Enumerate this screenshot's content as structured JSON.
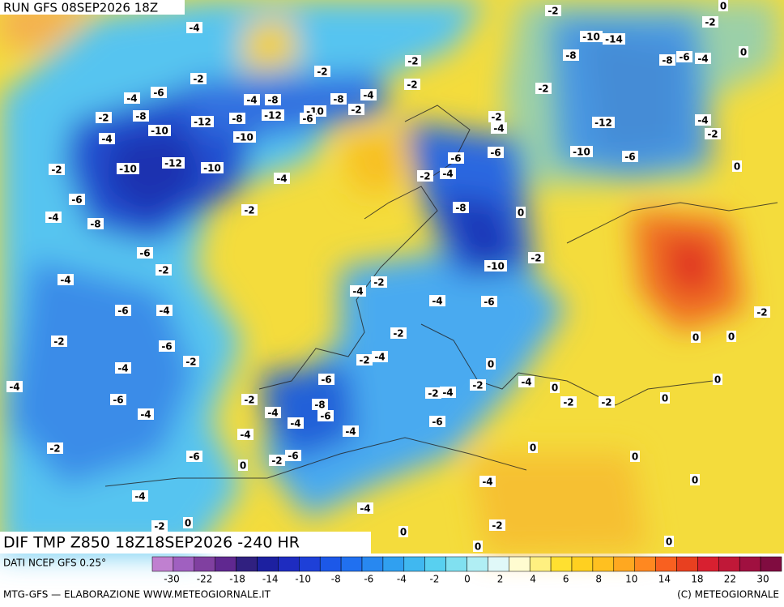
{
  "header": {
    "run": "RUN GFS 08SEP2026 18Z"
  },
  "map": {
    "title": "DIF TMP Z850 18Z18SEP2026 -240 HR",
    "contour_labels": [
      -4,
      -2,
      -2,
      0,
      -10,
      -14,
      -8,
      -8,
      -6,
      -4,
      0,
      -2,
      -2,
      -2,
      -2,
      -2,
      -4,
      -6,
      -4,
      -8,
      -4,
      -8,
      -2,
      -8,
      -12,
      -8,
      -12,
      -10,
      -6,
      -2,
      -2,
      -4,
      -12,
      -4,
      -2,
      -10,
      -10,
      -4,
      -6,
      -6,
      -10,
      -6,
      -10,
      -12,
      -10,
      -2,
      0,
      -2,
      -4,
      -4,
      -6,
      -8,
      0,
      -2,
      -4,
      -8,
      -6,
      -2,
      -10,
      -2,
      -4,
      -4,
      -2,
      -4,
      -6,
      -6,
      -4,
      -2,
      0,
      0,
      -2,
      -2,
      -6,
      -2,
      -4,
      -2,
      -4,
      0,
      -6,
      -4,
      0,
      0,
      -2,
      -4,
      -4,
      -2,
      -6,
      -2,
      -8,
      -2,
      -2,
      0,
      -6,
      -4,
      -4,
      -6,
      -4,
      -4,
      -4,
      -2,
      -6,
      0,
      -2,
      -6,
      0,
      0,
      -4,
      0,
      -4,
      -4,
      -2,
      0,
      -2,
      0,
      0,
      0
    ]
  },
  "legend": {
    "source": "DATI NCEP GFS 0.25°",
    "colors": [
      "#c080d0",
      "#a060c0",
      "#8040a0",
      "#602890",
      "#302080",
      "#1c20a0",
      "#1e2cc0",
      "#1e40d8",
      "#1c58e8",
      "#2070f0",
      "#2888f0",
      "#30a0f0",
      "#40b8f0",
      "#58d0f0",
      "#80e0f0",
      "#b0eef4",
      "#e0f8f8",
      "#fffcd0",
      "#fff080",
      "#ffe030",
      "#ffd020",
      "#ffc020",
      "#ffa820",
      "#ff8820",
      "#f86020",
      "#e84020",
      "#d82030",
      "#c01838",
      "#a01040",
      "#800c40"
    ],
    "ticks": [
      -30,
      -22,
      -18,
      -14,
      -10,
      -8,
      -6,
      -4,
      -2,
      0,
      2,
      4,
      6,
      8,
      10,
      14,
      18,
      22,
      30
    ]
  },
  "footer": {
    "credit": "MTG-GFS — ELABORAZIONE WWW.METEOGIORNALE.IT",
    "copyright": "(C) METEOGIORNALE"
  }
}
